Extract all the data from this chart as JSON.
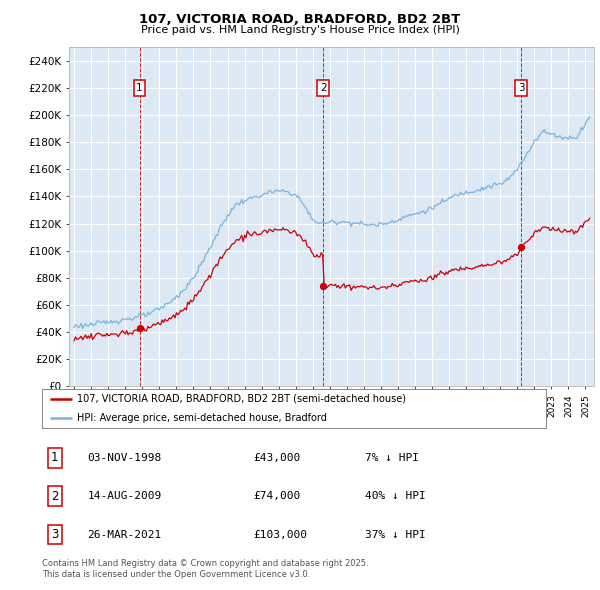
{
  "title1": "107, VICTORIA ROAD, BRADFORD, BD2 2BT",
  "title2": "Price paid vs. HM Land Registry's House Price Index (HPI)",
  "ylim": [
    0,
    250000
  ],
  "yticks": [
    0,
    20000,
    40000,
    60000,
    80000,
    100000,
    120000,
    140000,
    160000,
    180000,
    200000,
    220000,
    240000
  ],
  "ytick_labels": [
    "£0",
    "£20K",
    "£40K",
    "£60K",
    "£80K",
    "£100K",
    "£120K",
    "£140K",
    "£160K",
    "£180K",
    "£200K",
    "£220K",
    "£240K"
  ],
  "xlim_start": 1994.7,
  "xlim_end": 2025.5,
  "bg_color": "#dce9f5",
  "grid_color": "#ffffff",
  "sale1_date": 1998.84,
  "sale1_price": 43000,
  "sale1_label": "1",
  "sale2_date": 2009.62,
  "sale2_price": 74000,
  "sale2_label": "2",
  "sale3_date": 2021.23,
  "sale3_price": 103000,
  "sale3_label": "3",
  "legend_line1": "107, VICTORIA ROAD, BRADFORD, BD2 2BT (semi-detached house)",
  "legend_line2": "HPI: Average price, semi-detached house, Bradford",
  "table_rows": [
    [
      "1",
      "03-NOV-1998",
      "£43,000",
      "7% ↓ HPI"
    ],
    [
      "2",
      "14-AUG-2009",
      "£74,000",
      "40% ↓ HPI"
    ],
    [
      "3",
      "26-MAR-2021",
      "£103,000",
      "37% ↓ HPI"
    ]
  ],
  "footer": "Contains HM Land Registry data © Crown copyright and database right 2025.\nThis data is licensed under the Open Government Licence v3.0.",
  "sale_color": "#cc0000",
  "hpi_color": "#7ab3e0",
  "vline_color": "#cc0000",
  "marker_color": "#cc0000"
}
